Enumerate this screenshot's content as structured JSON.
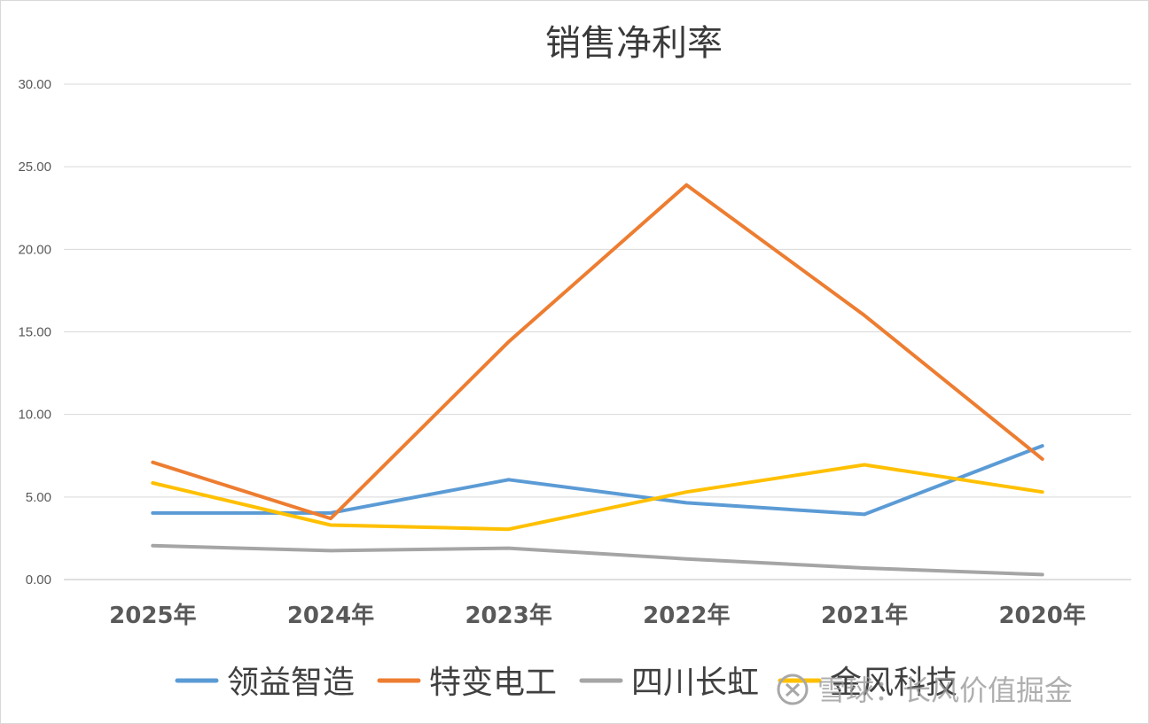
{
  "chart_data": {
    "type": "line",
    "title": "销售净利率",
    "categories": [
      "2025年",
      "2024年",
      "2023年",
      "2022年",
      "2021年",
      "2020年"
    ],
    "series": [
      {
        "name": "领益智造",
        "color": "#5b9bd5",
        "values": [
          4.03,
          4.03,
          6.05,
          4.65,
          3.95,
          8.1
        ]
      },
      {
        "name": "特变电工",
        "color": "#ed7d31",
        "values": [
          7.1,
          3.7,
          14.4,
          23.9,
          16.0,
          7.3
        ]
      },
      {
        "name": "四川长虹",
        "color": "#a5a5a5",
        "values": [
          2.05,
          1.75,
          1.9,
          1.25,
          0.7,
          0.3
        ]
      },
      {
        "name": "金风科技",
        "color": "#ffc000",
        "values": [
          5.85,
          3.3,
          3.05,
          5.3,
          6.95,
          5.3
        ]
      }
    ],
    "ylim": [
      0,
      30
    ],
    "yticks": [
      "0.00",
      "5.00",
      "10.00",
      "15.00",
      "20.00",
      "25.00",
      "30.00"
    ],
    "grid": true,
    "legend_position": "bottom",
    "xlabel": "",
    "ylabel": ""
  },
  "watermark": {
    "icon": "snowball-logo-icon",
    "text": "雪球：长风价值掘金"
  }
}
